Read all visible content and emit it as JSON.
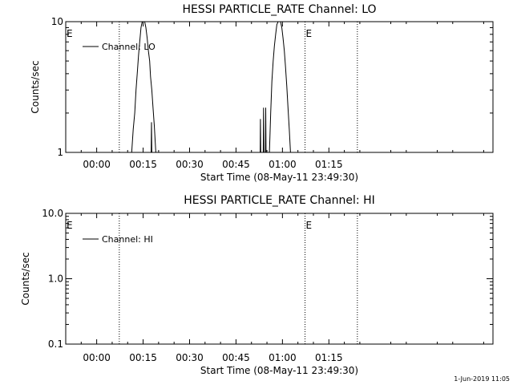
{
  "colors": {
    "background": "#ffffff",
    "foreground": "#000000"
  },
  "footer": {
    "date": "1-Jun-2019 11:05"
  },
  "chart_data": [
    {
      "type": "line",
      "title": "HESSI PARTICLE_RATE Channel: LO",
      "xlabel": "Start Time (08-May-11 23:49:30)",
      "ylabel": "Counts/sec",
      "yscale": "log",
      "ylim": [
        1,
        10
      ],
      "xlim": [
        -10,
        128
      ],
      "x_unit": "minutes after 00:00",
      "xticks": [
        0,
        15,
        30,
        45,
        60,
        75
      ],
      "xtick_labels": [
        "00:00",
        "00:15",
        "00:30",
        "00:45",
        "01:00",
        "01:15"
      ],
      "yticks": [
        1,
        10
      ],
      "ytick_labels": [
        "1",
        "10"
      ],
      "grid": false,
      "legend": {
        "position": "top-left",
        "entries": [
          "Channel: LO"
        ]
      },
      "vlines": [
        {
          "x": 7.3,
          "style": "dotted"
        },
        {
          "x": 67.3,
          "style": "dotted"
        },
        {
          "x": 84.2,
          "style": "dotted"
        }
      ],
      "markers": [
        {
          "label": "E",
          "x": -10
        },
        {
          "label": "E",
          "x": 67.3
        }
      ],
      "series": [
        {
          "name": "Channel: LO",
          "segments": [
            [
              [
                11.3,
                1
              ],
              [
                11.8,
                1.5
              ],
              [
                12.3,
                2
              ],
              [
                12.7,
                3
              ],
              [
                13.1,
                4
              ],
              [
                13.5,
                5.5
              ],
              [
                13.9,
                7
              ],
              [
                14.3,
                9
              ],
              [
                14.7,
                10.5
              ],
              [
                15.1,
                11
              ],
              [
                15.5,
                10.5
              ],
              [
                15.9,
                9
              ],
              [
                16.3,
                7.5
              ],
              [
                16.7,
                6
              ],
              [
                17.1,
                5
              ],
              [
                17.4,
                3.8
              ],
              [
                17.8,
                3
              ],
              [
                18.2,
                2.2
              ],
              [
                18.6,
                1.6
              ],
              [
                19.1,
                1
              ]
            ],
            [
              [
                17.6,
                1
              ],
              [
                17.7,
                1.7
              ],
              [
                17.8,
                1
              ]
            ],
            [
              [
                52.8,
                1
              ],
              [
                52.9,
                1.8
              ],
              [
                53.0,
                1
              ]
            ],
            [
              [
                53.8,
                1
              ],
              [
                53.9,
                2.2
              ],
              [
                54.0,
                1
              ]
            ],
            [
              [
                54.5,
                1
              ],
              [
                54.6,
                2.2
              ],
              [
                54.7,
                1
              ]
            ],
            [
              [
                55.8,
                1
              ],
              [
                56.0,
                1.4
              ],
              [
                56.2,
                2
              ],
              [
                56.6,
                3.5
              ],
              [
                57.0,
                5
              ],
              [
                57.4,
                6.5
              ],
              [
                57.8,
                8
              ],
              [
                58.2,
                9.5
              ],
              [
                58.6,
                10.5
              ],
              [
                59.0,
                11
              ],
              [
                59.4,
                10.5
              ],
              [
                59.8,
                9
              ],
              [
                60.2,
                7.5
              ],
              [
                60.6,
                6
              ],
              [
                61.0,
                4.5
              ],
              [
                61.4,
                3.2
              ],
              [
                61.8,
                2.2
              ],
              [
                62.2,
                1.5
              ],
              [
                62.6,
                1
              ]
            ]
          ]
        }
      ]
    },
    {
      "type": "line",
      "title": "HESSI PARTICLE_RATE Channel: HI",
      "xlabel": "Start Time (08-May-11 23:49:30)",
      "ylabel": "Counts/sec",
      "yscale": "log",
      "ylim": [
        0.1,
        10
      ],
      "xlim": [
        -10,
        128
      ],
      "x_unit": "minutes after 00:00",
      "xticks": [
        0,
        15,
        30,
        45,
        60,
        75
      ],
      "xtick_labels": [
        "00:00",
        "00:15",
        "00:30",
        "00:45",
        "01:00",
        "01:15"
      ],
      "yticks": [
        0.1,
        1,
        10
      ],
      "ytick_labels": [
        "0.1",
        "1.0",
        "10.0"
      ],
      "grid": false,
      "legend": {
        "position": "top-left",
        "entries": [
          "Channel: HI"
        ]
      },
      "vlines": [
        {
          "x": 7.3,
          "style": "dotted"
        },
        {
          "x": 67.3,
          "style": "dotted"
        },
        {
          "x": 84.2,
          "style": "dotted"
        }
      ],
      "markers": [
        {
          "label": "E",
          "x": -10
        },
        {
          "label": "E",
          "x": 67.3
        }
      ],
      "series": [
        {
          "name": "Channel: HI",
          "segments": []
        }
      ]
    }
  ]
}
